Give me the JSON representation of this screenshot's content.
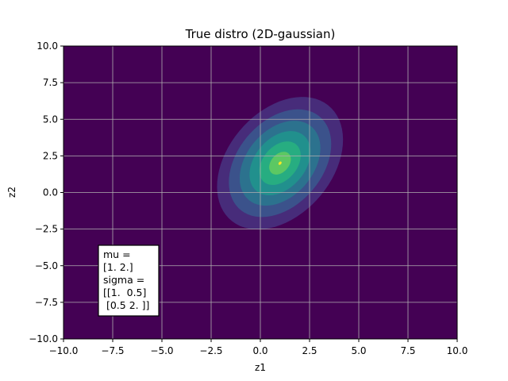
{
  "chart_data": {
    "type": "contour",
    "title": "True distro (2D-gaussian)",
    "xlabel": "z1",
    "ylabel": "z2",
    "xlim": [
      -10,
      10
    ],
    "ylim": [
      -10,
      10
    ],
    "xticks": [
      "−10.0",
      "−7.5",
      "−5.0",
      "−2.5",
      "0.0",
      "2.5",
      "5.0",
      "7.5",
      "10.0"
    ],
    "yticks": [
      "10.0",
      "7.5",
      "5.0",
      "2.5",
      "0.0",
      "−2.5",
      "−5.0",
      "−7.5",
      "−10.0"
    ],
    "xtick_values": [
      -10,
      -7.5,
      -5,
      -2.5,
      0,
      2.5,
      5,
      7.5,
      10
    ],
    "ytick_values": [
      10,
      7.5,
      5,
      2.5,
      0,
      -2.5,
      -5,
      -7.5,
      -10
    ],
    "grid": true,
    "mu": [
      1,
      2
    ],
    "sigma": [
      [
        1,
        0.5
      ],
      [
        0.5,
        2
      ]
    ],
    "colormap": [
      "#440154",
      "#472c7a",
      "#3b528b",
      "#2c728e",
      "#21908d",
      "#27ad81",
      "#5cc863",
      "#aadc32",
      "#fde725"
    ],
    "annotation": {
      "lines": [
        "mu =",
        "[1. 2.]",
        "sigma =",
        "[[1.  0.5]",
        " [0.5 2. ]]"
      ],
      "position": "lower-left"
    }
  }
}
